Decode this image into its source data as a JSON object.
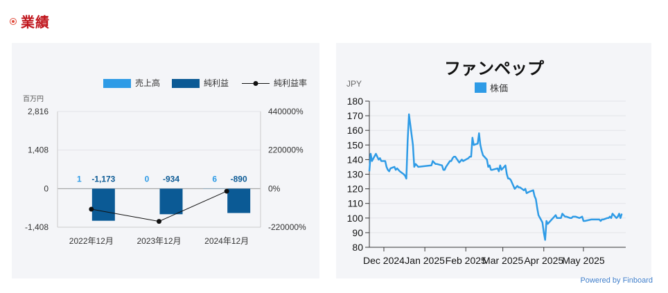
{
  "header": {
    "title": "業績"
  },
  "left_chart": {
    "legend": {
      "revenue": "売上高",
      "net_income": "純利益",
      "net_margin": "純利益率"
    },
    "unit_label": "百万円",
    "colors": {
      "revenue": "#2e9be6",
      "net_income": "#0b5a95",
      "margin": "#111111"
    },
    "chart_data": {
      "type": "bar",
      "categories": [
        "2022年12月",
        "2023年12月",
        "2024年12月"
      ],
      "series": [
        {
          "name": "売上高",
          "values": [
            1,
            0,
            6
          ]
        },
        {
          "name": "純利益",
          "values": [
            -1173,
            -934,
            -890
          ]
        },
        {
          "name": "純利益率",
          "values": [
            -117300,
            -186800,
            -14833
          ]
        }
      ],
      "ylim": [
        -1408,
        2816
      ],
      "y_ticks": [
        "2,816",
        "1,408",
        "0",
        "-1,408"
      ],
      "y2lim": [
        -220000,
        440000
      ],
      "y2_ticks": [
        "440000%",
        "220000%",
        "0%",
        "-220000%"
      ],
      "data_labels": {
        "revenue": [
          "1",
          "0",
          "6"
        ],
        "net_income": [
          "-1,173",
          "-934",
          "-890"
        ]
      }
    }
  },
  "right_chart": {
    "title": "ファンペップ",
    "ylabel": "JPY",
    "legend": "株価",
    "color": "#2e9be6",
    "chart_data": {
      "type": "line",
      "series_name": "株価",
      "ylim": [
        80,
        180
      ],
      "y_ticks": [
        80,
        90,
        100,
        110,
        120,
        130,
        140,
        150,
        160,
        170,
        180
      ],
      "x_range": [
        "2024-11-20",
        "2025-06-02"
      ],
      "x_ticks": [
        {
          "label": "Dec 2024",
          "date": "2024-12-01"
        },
        {
          "label": "Jan 2025",
          "date": "2025-01-01"
        },
        {
          "label": "Feb 2025",
          "date": "2025-02-01"
        },
        {
          "label": "Mar 2025",
          "date": "2025-03-01"
        },
        {
          "label": "Apr 2025",
          "date": "2025-04-01"
        },
        {
          "label": "May 2025",
          "date": "2025-05-01"
        }
      ],
      "points": [
        [
          "2024-11-20",
          132
        ],
        [
          "2024-11-21",
          144
        ],
        [
          "2024-11-22",
          139
        ],
        [
          "2024-11-25",
          144
        ],
        [
          "2024-11-26",
          142
        ],
        [
          "2024-11-27",
          140
        ],
        [
          "2024-11-28",
          141
        ],
        [
          "2024-11-29",
          139
        ],
        [
          "2024-12-02",
          139
        ],
        [
          "2024-12-03",
          135
        ],
        [
          "2024-12-04",
          133
        ],
        [
          "2024-12-05",
          132
        ],
        [
          "2024-12-06",
          134
        ],
        [
          "2024-12-09",
          135
        ],
        [
          "2024-12-10",
          133
        ],
        [
          "2024-12-11",
          134
        ],
        [
          "2024-12-12",
          133
        ],
        [
          "2024-12-13",
          132
        ],
        [
          "2024-12-16",
          130
        ],
        [
          "2024-12-17",
          129
        ],
        [
          "2024-12-18",
          127
        ],
        [
          "2024-12-19",
          153
        ],
        [
          "2024-12-20",
          171
        ],
        [
          "2024-12-23",
          150
        ],
        [
          "2024-12-24",
          135
        ],
        [
          "2024-12-25",
          137
        ],
        [
          "2024-12-26",
          136
        ],
        [
          "2024-12-27",
          135
        ],
        [
          "2025-01-06",
          136
        ],
        [
          "2025-01-07",
          139
        ],
        [
          "2025-01-08",
          138
        ],
        [
          "2025-01-09",
          137
        ],
        [
          "2025-01-10",
          137
        ],
        [
          "2025-01-14",
          136
        ],
        [
          "2025-01-15",
          133
        ],
        [
          "2025-01-16",
          133
        ],
        [
          "2025-01-17",
          135
        ],
        [
          "2025-01-20",
          139
        ],
        [
          "2025-01-21",
          139
        ],
        [
          "2025-01-22",
          141
        ],
        [
          "2025-01-23",
          142
        ],
        [
          "2025-01-24",
          142
        ],
        [
          "2025-01-27",
          138
        ],
        [
          "2025-01-28",
          139
        ],
        [
          "2025-01-29",
          140
        ],
        [
          "2025-01-30",
          139
        ],
        [
          "2025-02-03",
          141
        ],
        [
          "2025-02-04",
          142
        ],
        [
          "2025-02-05",
          142
        ],
        [
          "2025-02-06",
          155
        ],
        [
          "2025-02-07",
          150
        ],
        [
          "2025-02-10",
          151
        ],
        [
          "2025-02-11",
          158
        ],
        [
          "2025-02-12",
          150
        ],
        [
          "2025-02-13",
          146
        ],
        [
          "2025-02-14",
          143
        ],
        [
          "2025-02-17",
          140
        ],
        [
          "2025-02-18",
          135
        ],
        [
          "2025-02-19",
          136
        ],
        [
          "2025-02-20",
          133
        ],
        [
          "2025-02-21",
          133
        ],
        [
          "2025-02-25",
          134
        ],
        [
          "2025-02-26",
          132
        ],
        [
          "2025-02-27",
          136
        ],
        [
          "2025-02-28",
          133
        ],
        [
          "2025-03-03",
          136
        ],
        [
          "2025-03-04",
          130
        ],
        [
          "2025-03-05",
          127
        ],
        [
          "2025-03-06",
          127
        ],
        [
          "2025-03-07",
          126
        ],
        [
          "2025-03-10",
          120
        ],
        [
          "2025-03-11",
          121
        ],
        [
          "2025-03-12",
          122
        ],
        [
          "2025-03-13",
          121
        ],
        [
          "2025-03-14",
          121
        ],
        [
          "2025-03-17",
          119
        ],
        [
          "2025-03-18",
          120
        ],
        [
          "2025-03-19",
          117
        ],
        [
          "2025-03-21",
          118
        ],
        [
          "2025-03-24",
          119
        ],
        [
          "2025-03-25",
          115
        ],
        [
          "2025-03-26",
          113
        ],
        [
          "2025-03-27",
          107
        ],
        [
          "2025-03-28",
          102
        ],
        [
          "2025-03-31",
          97
        ],
        [
          "2025-04-01",
          90
        ],
        [
          "2025-04-02",
          85
        ],
        [
          "2025-04-03",
          98
        ],
        [
          "2025-04-04",
          96
        ],
        [
          "2025-04-07",
          99
        ],
        [
          "2025-04-08",
          100
        ],
        [
          "2025-04-09",
          101
        ],
        [
          "2025-04-10",
          102
        ],
        [
          "2025-04-11",
          100
        ],
        [
          "2025-04-14",
          100
        ],
        [
          "2025-04-15",
          103
        ],
        [
          "2025-04-16",
          102
        ],
        [
          "2025-04-17",
          101
        ],
        [
          "2025-04-18",
          101
        ],
        [
          "2025-04-21",
          100
        ],
        [
          "2025-04-22",
          100
        ],
        [
          "2025-04-23",
          101
        ],
        [
          "2025-04-24",
          101
        ],
        [
          "2025-04-25",
          101
        ],
        [
          "2025-04-28",
          100
        ],
        [
          "2025-04-30",
          101
        ],
        [
          "2025-05-01",
          98
        ],
        [
          "2025-05-02",
          98
        ],
        [
          "2025-05-07",
          99
        ],
        [
          "2025-05-08",
          99
        ],
        [
          "2025-05-09",
          99
        ],
        [
          "2025-05-12",
          99
        ],
        [
          "2025-05-13",
          99
        ],
        [
          "2025-05-14",
          98
        ],
        [
          "2025-05-15",
          99
        ],
        [
          "2025-05-16",
          99
        ],
        [
          "2025-05-19",
          100
        ],
        [
          "2025-05-20",
          100
        ],
        [
          "2025-05-21",
          101
        ],
        [
          "2025-05-22",
          100
        ],
        [
          "2025-05-23",
          103
        ],
        [
          "2025-05-26",
          100
        ],
        [
          "2025-05-27",
          101
        ],
        [
          "2025-05-28",
          103
        ],
        [
          "2025-05-29",
          100
        ],
        [
          "2025-05-30",
          103
        ]
      ]
    }
  },
  "footer": {
    "powered_by": "Powered by Finboard"
  }
}
